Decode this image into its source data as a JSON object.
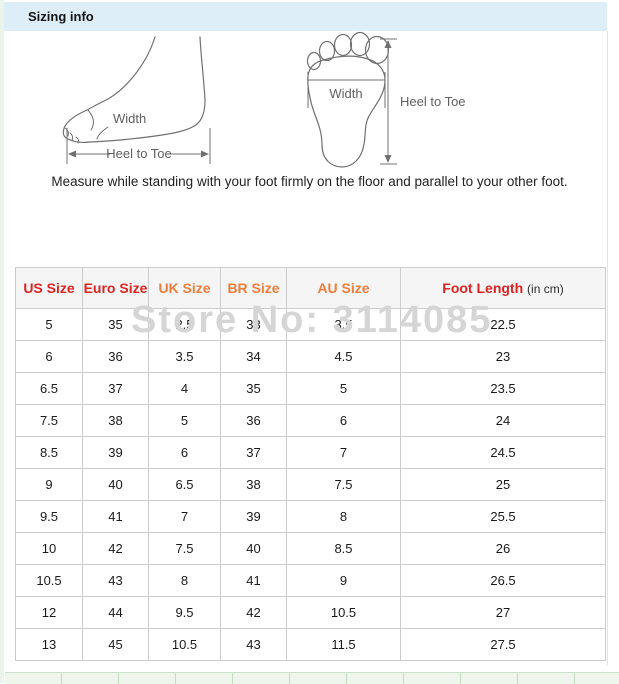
{
  "titlebar": {
    "title": "Sizing info"
  },
  "diagrams": {
    "side_view": {
      "width_label": "Width",
      "length_label": "Heel to Toe"
    },
    "bottom_view": {
      "width_label": "Width",
      "length_label": "Heel to Toe"
    },
    "instruction": "Measure while standing with your foot firmly on the floor and parallel to your other foot."
  },
  "watermark": {
    "text": "Store No: 3114085"
  },
  "size_table": {
    "columns": [
      {
        "label": "US Size",
        "color": "#dd2422"
      },
      {
        "label": "Euro Size",
        "color": "#dd2422"
      },
      {
        "label": "UK Size",
        "color": "#ee7d3a"
      },
      {
        "label": "BR Size",
        "color": "#ee7d3a"
      },
      {
        "label": "AU Size",
        "color": "#ee7d3a"
      },
      {
        "label": "Foot Length",
        "color": "#dd2422",
        "unit": "(in cm)"
      }
    ],
    "rows": [
      [
        "5",
        "35",
        "2.5",
        "33",
        "3.5",
        "22.5"
      ],
      [
        "6",
        "36",
        "3.5",
        "34",
        "4.5",
        "23"
      ],
      [
        "6.5",
        "37",
        "4",
        "35",
        "5",
        "23.5"
      ],
      [
        "7.5",
        "38",
        "5",
        "36",
        "6",
        "24"
      ],
      [
        "8.5",
        "39",
        "6",
        "37",
        "7",
        "24.5"
      ],
      [
        "9",
        "40",
        "6.5",
        "38",
        "7.5",
        "25"
      ],
      [
        "9.5",
        "41",
        "7",
        "39",
        "8",
        "25.5"
      ],
      [
        "10",
        "42",
        "7.5",
        "40",
        "8.5",
        "26"
      ],
      [
        "10.5",
        "43",
        "8",
        "41",
        "9",
        "26.5"
      ],
      [
        "12",
        "44",
        "9.5",
        "42",
        "10.5",
        "27"
      ],
      [
        "13",
        "45",
        "10.5",
        "43",
        "11.5",
        "27.5"
      ]
    ]
  },
  "colors": {
    "titlebar_bg": "#ddeef8",
    "header_bg": "#f5f5f5",
    "header_red": "#dd2422",
    "header_orange": "#ee7d3a",
    "table_border": "#cccccc",
    "watermark_gray": "#d5d5d5",
    "diagram_stroke": "#707070"
  }
}
